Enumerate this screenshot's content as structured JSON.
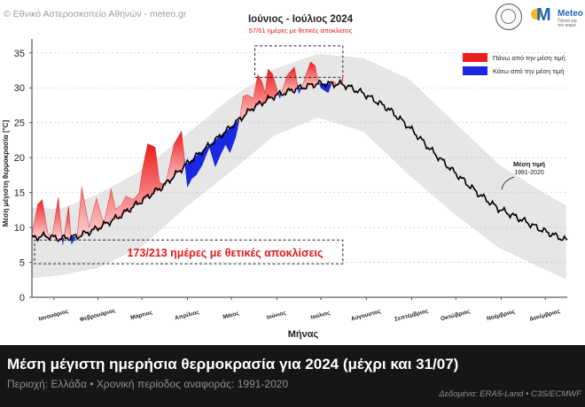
{
  "header": {
    "copyright": "© Εθνικό Αστεροσκοπείο Αθηνών - meteo.gr",
    "logo_name": "Meteo",
    "logo_tagline": "Πάντα για τον καιρό"
  },
  "footer": {
    "title": "Μέση μέγιστη ημερήσια θερμοκρασία για 2024 (μέχρι και 31/07)",
    "subtitle": "Περιοχή: Ελλάδα • Χρονική περίοδος αναφοράς: 1991-2020",
    "source": "Δεδομένα: ERA5-Land • C3S/ECMWF"
  },
  "colors": {
    "above": "#ee1c1c",
    "below": "#1a28e6",
    "band": "#e6e6e6",
    "mean": "#000000",
    "highlight": "#e31b1b"
  },
  "chart_data": {
    "type": "area",
    "title": "",
    "xlabel": "Μήνας",
    "ylabel": "Μέση μέγιστη θερμοκρασία [°C]",
    "ylim": [
      0,
      37
    ],
    "xlim": [
      1,
      366
    ],
    "yticks": [
      0,
      5,
      10,
      15,
      20,
      25,
      30,
      35
    ],
    "month_labels": [
      "Ιανουάριος",
      "Φεβρουάριος",
      "Μάρτιος",
      "Απρίλιος",
      "Μάιος",
      "Ιούνιος",
      "Ιούλιος",
      "Αύγουστος",
      "Σεπτέμβριος",
      "Οκτώβριος",
      "Νοέμβριος",
      "Δεκέμβριος"
    ],
    "legend": {
      "position": "top-right",
      "above_label": "Πάνω από την μέση τιμή",
      "below_label": "Κάτω από την μέση τιμή"
    },
    "mean_label_title": "Μέση τιμή",
    "mean_label_period": "1991-2020",
    "summer_box": {
      "title": "Ιούνιος - Ιούλιος 2024",
      "text": "57/61 ημέρες με θετικές αποκλίσεις",
      "x_range": [
        153,
        213
      ],
      "y_range": [
        31.5,
        36
      ]
    },
    "year_box": {
      "text": "173/213 ημέρες με θετικές αποκλίσεις",
      "x_range": [
        1,
        213
      ],
      "y_range": [
        4.8,
        8.2
      ]
    },
    "series": [
      {
        "name": "Μέση τιμή 1991-2020",
        "x": [
          1,
          10,
          20,
          32,
          45,
          60,
          75,
          91,
          105,
          121,
          135,
          152,
          166,
          182,
          196,
          213,
          227,
          244,
          258,
          274,
          288,
          305,
          319,
          335,
          349,
          366
        ],
        "values": [
          8.5,
          8.8,
          8.4,
          8.7,
          9.8,
          11.5,
          13.7,
          16.0,
          18.8,
          21.6,
          24.1,
          27.2,
          28.8,
          29.9,
          30.6,
          30.5,
          29.2,
          27.0,
          24.4,
          20.9,
          18.1,
          14.9,
          12.7,
          11.1,
          9.6,
          8.1
        ]
      },
      {
        "name": "Εύρος μεταβλητότητας (άνω)",
        "x": [
          1,
          20,
          45,
          75,
          105,
          135,
          166,
          196,
          227,
          258,
          288,
          319,
          349,
          366
        ],
        "values": [
          12.8,
          12.6,
          14.6,
          18.0,
          23.0,
          28.2,
          32.6,
          34.8,
          34.2,
          31.2,
          25.2,
          19.0,
          15.0,
          13.0
        ]
      },
      {
        "name": "Εύρος μεταβλητότητας (κάτω)",
        "x": [
          1,
          20,
          45,
          75,
          105,
          135,
          166,
          196,
          227,
          258,
          288,
          319,
          349,
          366
        ],
        "values": [
          2.8,
          3.2,
          4.2,
          7.2,
          12.8,
          17.8,
          23.2,
          25.8,
          23.8,
          17.6,
          12.2,
          7.2,
          4.2,
          2.6
        ]
      },
      {
        "name": "2024",
        "x": [
          1,
          5,
          8,
          12,
          15,
          19,
          22,
          26,
          28,
          32,
          35,
          40,
          45,
          50,
          55,
          58,
          62,
          65,
          70,
          74,
          77,
          80,
          85,
          88,
          92,
          98,
          103,
          107,
          110,
          113,
          117,
          122,
          126,
          130,
          133,
          136,
          140,
          143,
          145,
          148,
          152,
          155,
          158,
          160,
          162,
          165,
          170,
          175,
          180,
          183,
          186,
          188,
          191,
          194,
          196,
          198,
          200,
          203,
          206,
          210,
          213
        ],
        "values": [
          9.0,
          13.3,
          14.0,
          9.0,
          9.0,
          14.3,
          7.5,
          13.0,
          7.6,
          9.0,
          15.8,
          10.0,
          14.2,
          10.5,
          15.5,
          12.6,
          13.2,
          14.5,
          14.0,
          14.9,
          19.0,
          22.0,
          21.5,
          16.5,
          16.0,
          22.0,
          23.8,
          15.8,
          17.0,
          17.5,
          18.9,
          21.5,
          18.7,
          20.6,
          21.9,
          20.7,
          23.0,
          26.0,
          28.8,
          29.0,
          28.5,
          31.9,
          30.8,
          29.2,
          32.7,
          32.0,
          28.5,
          31.8,
          33.0,
          29.2,
          30.6,
          32.0,
          33.7,
          33.2,
          31.1,
          30.0,
          29.7,
          29.3,
          31.0,
          30.4,
          31.5
        ]
      }
    ]
  }
}
